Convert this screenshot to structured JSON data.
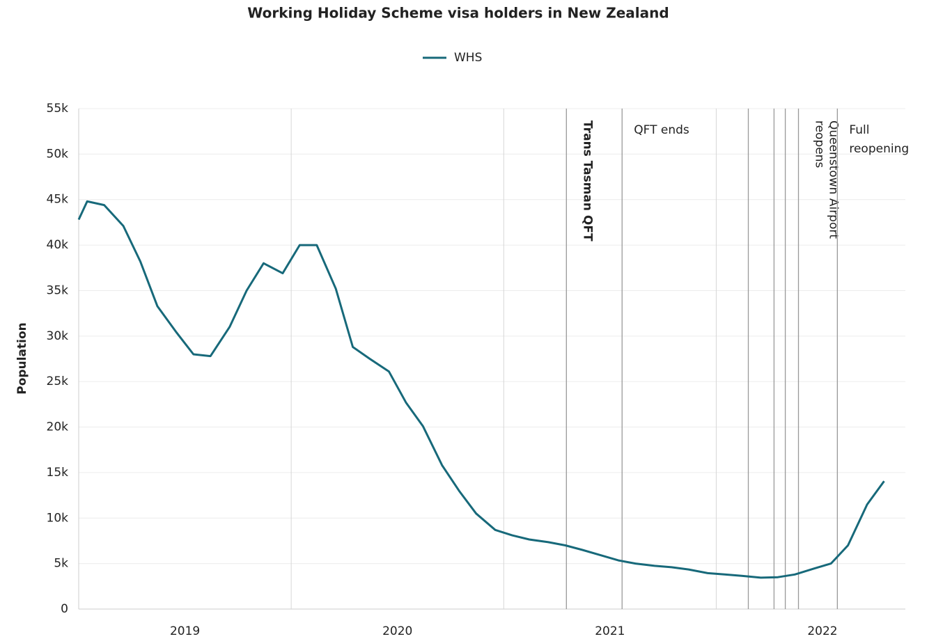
{
  "chart_data": {
    "type": "line",
    "title": "Working Holiday Scheme visa holders in New Zealand",
    "y_label": "Population",
    "x": [
      2019.0,
      2019.04,
      2019.12,
      2019.21,
      2019.29,
      2019.37,
      2019.46,
      2019.54,
      2019.62,
      2019.71,
      2019.79,
      2019.87,
      2019.96,
      2020.04,
      2020.12,
      2020.21,
      2020.29,
      2020.37,
      2020.46,
      2020.54,
      2020.62,
      2020.71,
      2020.79,
      2020.87,
      2020.96,
      2021.04,
      2021.12,
      2021.21,
      2021.29,
      2021.37,
      2021.46,
      2021.54,
      2021.62,
      2021.71,
      2021.79,
      2021.87,
      2021.96,
      2022.04,
      2022.12,
      2022.21,
      2022.29,
      2022.37,
      2022.46,
      2022.54,
      2022.62,
      2022.71,
      2022.79
    ],
    "series": [
      {
        "name": "WHS",
        "color": "#17697a",
        "values": [
          42800,
          44800,
          44400,
          42100,
          38200,
          33300,
          30400,
          28000,
          27800,
          31000,
          35000,
          38000,
          36900,
          40000,
          40000,
          35200,
          28800,
          27500,
          26100,
          22700,
          20100,
          15800,
          13000,
          10500,
          8700,
          8100,
          7650,
          7350,
          7000,
          6500,
          5900,
          5350,
          5000,
          4750,
          4600,
          4350,
          3950,
          3800,
          3650,
          3450,
          3500,
          3800,
          4450,
          5000,
          7000,
          11500,
          14050
        ]
      }
    ],
    "xlim": [
      2019,
      2022.89
    ],
    "xticks": [
      {
        "value": 2019.5,
        "label": "2019"
      },
      {
        "value": 2020.5,
        "label": "2020"
      },
      {
        "value": 2021.5,
        "label": "2021"
      },
      {
        "value": 2022.5,
        "label": "2022"
      }
    ],
    "xgrid": [
      2020,
      2021,
      2022
    ],
    "ylim": [
      0,
      55000
    ],
    "yticks": [
      0,
      {
        "value": 5000,
        "label": "5k"
      },
      {
        "value": 10000,
        "label": "10k"
      },
      {
        "value": 15000,
        "label": "15k"
      },
      {
        "value": 20000,
        "label": "20k"
      },
      {
        "value": 25000,
        "label": "25k"
      },
      {
        "value": 30000,
        "label": "30k"
      },
      {
        "value": 35000,
        "label": "35k"
      },
      {
        "value": 40000,
        "label": "40k"
      },
      {
        "value": 45000,
        "label": "45k"
      },
      {
        "value": 50000,
        "label": "50k"
      },
      {
        "value": 55000,
        "label": "55k"
      }
    ],
    "grid": true,
    "legend": "top",
    "annotations": [
      {
        "x": 2021.295,
        "label": [
          "Trans Tasman QFT"
        ],
        "rotated": true,
        "color": "#17697a",
        "bold": true
      },
      {
        "x": 2021.557,
        "label": [
          "QFT ends"
        ]
      },
      {
        "x": 2022.151
      },
      {
        "x": 2022.272
      },
      {
        "x": 2022.325
      },
      {
        "x": 2022.387,
        "label": [
          "Queenstown Airport",
          "reopens"
        ],
        "rotated": true
      },
      {
        "x": 2022.57,
        "label": [
          "Full",
          "reopening"
        ]
      }
    ]
  }
}
